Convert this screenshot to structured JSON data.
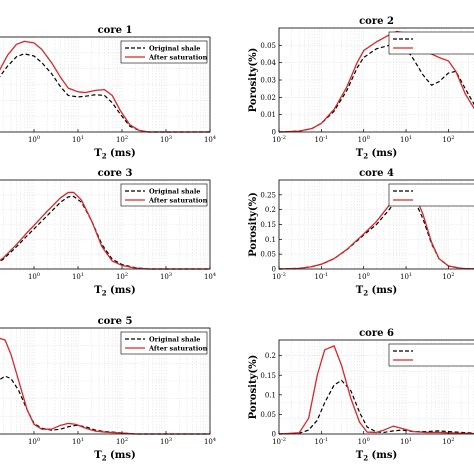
{
  "chart_data": [
    {
      "type": "line",
      "title": "core 1",
      "xlabel": "T 2 (ms)",
      "ylabel": "",
      "xscale": "log",
      "xlim": [
        0.1,
        10000
      ],
      "ylim": [
        0,
        0.13
      ],
      "xticks": [
        "10^-1",
        "10^0",
        "10^1",
        "10^2",
        "10^3",
        "10^4"
      ],
      "yticks": [],
      "grid": true,
      "legend_position": "top-right",
      "series": [
        {
          "name": "Original shale",
          "style": "dashed",
          "color": "#000000",
          "x": [
            0.1,
            0.15,
            0.25,
            0.4,
            0.6,
            1,
            1.5,
            2.5,
            4,
            6,
            10,
            15,
            25,
            40,
            60,
            90,
            150,
            250,
            400,
            1000,
            10000
          ],
          "y": [
            0.058,
            0.072,
            0.09,
            0.103,
            0.107,
            0.104,
            0.095,
            0.08,
            0.062,
            0.05,
            0.048,
            0.049,
            0.051,
            0.05,
            0.04,
            0.025,
            0.008,
            0.002,
            0.0,
            0.0,
            0.0
          ]
        },
        {
          "name": "After saturation",
          "style": "solid",
          "color": "#d62728",
          "x": [
            0.1,
            0.15,
            0.25,
            0.4,
            0.6,
            1,
            1.5,
            2.5,
            4,
            6,
            10,
            15,
            25,
            40,
            60,
            90,
            150,
            250,
            400,
            1000,
            10000
          ],
          "y": [
            0.06,
            0.08,
            0.105,
            0.12,
            0.124,
            0.122,
            0.113,
            0.095,
            0.075,
            0.06,
            0.055,
            0.054,
            0.057,
            0.058,
            0.05,
            0.03,
            0.01,
            0.002,
            0.0,
            0.0,
            0.0
          ]
        }
      ]
    },
    {
      "type": "line",
      "title": "core 2",
      "xlabel": "T 2 (ms)",
      "ylabel": "Porosity(%)",
      "xscale": "log",
      "xlim": [
        0.01,
        500
      ],
      "ylim": [
        0,
        0.06
      ],
      "xticks": [
        "10^-2",
        "10^-1",
        "10^0",
        "10^1",
        "10^2"
      ],
      "yticks": [
        "0",
        "0.01",
        "0.02",
        "0.03",
        "0.04",
        "0.05"
      ],
      "grid": true,
      "legend_position": "top-right",
      "series": [
        {
          "name": "",
          "style": "dashed",
          "color": "#000000",
          "x": [
            0.01,
            0.03,
            0.06,
            0.1,
            0.2,
            0.4,
            0.7,
            1,
            2,
            4,
            6,
            10,
            15,
            25,
            40,
            60,
            100,
            150,
            250,
            500
          ],
          "y": [
            0.0,
            0.0005,
            0.002,
            0.005,
            0.012,
            0.024,
            0.037,
            0.043,
            0.048,
            0.05,
            0.052,
            0.048,
            0.042,
            0.033,
            0.027,
            0.029,
            0.034,
            0.035,
            0.025,
            0.012
          ]
        },
        {
          "name": "",
          "style": "solid",
          "color": "#d62728",
          "x": [
            0.01,
            0.03,
            0.06,
            0.1,
            0.2,
            0.4,
            0.7,
            1,
            2,
            4,
            6,
            10,
            15,
            25,
            40,
            60,
            100,
            150,
            250,
            500
          ],
          "y": [
            0.0,
            0.0005,
            0.002,
            0.005,
            0.013,
            0.026,
            0.04,
            0.047,
            0.052,
            0.056,
            0.058,
            0.057,
            0.053,
            0.047,
            0.045,
            0.043,
            0.041,
            0.035,
            0.022,
            0.01
          ]
        }
      ]
    },
    {
      "type": "line",
      "title": "core 3",
      "xlabel": "T 2 (ms)",
      "ylabel": "",
      "xscale": "log",
      "xlim": [
        0.1,
        10000
      ],
      "ylim": [
        0,
        0.2
      ],
      "xticks": [
        "10^-1",
        "10^0",
        "10^1",
        "10^2",
        "10^3",
        "10^4"
      ],
      "yticks": [],
      "grid": true,
      "legend_position": "top-right",
      "series": [
        {
          "name": "Original shale",
          "style": "dashed",
          "color": "#000000",
          "x": [
            0.1,
            0.2,
            0.4,
            0.7,
            1,
            2,
            4,
            6,
            8,
            12,
            20,
            35,
            60,
            100,
            200,
            400,
            1000,
            10000
          ],
          "y": [
            0.003,
            0.022,
            0.05,
            0.075,
            0.09,
            0.12,
            0.15,
            0.162,
            0.163,
            0.15,
            0.11,
            0.055,
            0.022,
            0.01,
            0.003,
            0.0,
            0.0,
            0.0
          ]
        },
        {
          "name": "After saturation",
          "style": "solid",
          "color": "#d62728",
          "x": [
            0.1,
            0.2,
            0.4,
            0.7,
            1,
            2,
            4,
            6,
            8,
            12,
            20,
            35,
            60,
            100,
            200,
            400,
            1000,
            10000
          ],
          "y": [
            0.003,
            0.025,
            0.055,
            0.082,
            0.098,
            0.13,
            0.16,
            0.172,
            0.172,
            0.155,
            0.11,
            0.05,
            0.018,
            0.008,
            0.002,
            0.0,
            0.0,
            0.0
          ]
        }
      ]
    },
    {
      "type": "line",
      "title": "core 4",
      "xlabel": "T 2 (ms)",
      "ylabel": "Porosity(%)",
      "xscale": "log",
      "xlim": [
        0.01,
        500
      ],
      "ylim": [
        0,
        0.3
      ],
      "xticks": [
        "10^-2",
        "10^-1",
        "10^0",
        "10^1",
        "10^2"
      ],
      "yticks": [
        "0",
        "0.05",
        "0.1",
        "0.15",
        "0.2",
        "0.25"
      ],
      "grid": true,
      "legend_position": "top-right",
      "series": [
        {
          "name": "",
          "style": "dashed",
          "color": "#000000",
          "x": [
            0.01,
            0.03,
            0.06,
            0.1,
            0.2,
            0.4,
            0.7,
            1,
            2,
            4,
            6,
            10,
            15,
            25,
            40,
            60,
            100,
            200,
            500
          ],
          "y": [
            0.0,
            0.002,
            0.008,
            0.016,
            0.035,
            0.065,
            0.095,
            0.115,
            0.15,
            0.2,
            0.235,
            0.258,
            0.24,
            0.17,
            0.085,
            0.035,
            0.01,
            0.002,
            0.0
          ]
        },
        {
          "name": "",
          "style": "solid",
          "color": "#d62728",
          "x": [
            0.01,
            0.03,
            0.06,
            0.1,
            0.2,
            0.4,
            0.7,
            1,
            2,
            4,
            6,
            10,
            15,
            25,
            40,
            60,
            100,
            200,
            500
          ],
          "y": [
            0.0,
            0.002,
            0.008,
            0.016,
            0.035,
            0.066,
            0.098,
            0.118,
            0.16,
            0.215,
            0.255,
            0.28,
            0.262,
            0.185,
            0.09,
            0.035,
            0.01,
            0.002,
            0.0
          ]
        }
      ]
    },
    {
      "type": "line",
      "title": "core 5",
      "xlabel": "T 2 (ms)",
      "ylabel": "",
      "xscale": "log",
      "xlim": [
        0.1,
        10000
      ],
      "ylim": [
        0,
        0.22
      ],
      "xticks": [
        "10^-1",
        "10^0",
        "10^1",
        "10^2",
        "10^3",
        "10^4"
      ],
      "yticks": [],
      "grid": true,
      "legend_position": "top-right",
      "series": [
        {
          "name": "Original shale",
          "style": "dashed",
          "color": "#000000",
          "x": [
            0.1,
            0.15,
            0.22,
            0.3,
            0.45,
            0.7,
            1,
            1.5,
            2.5,
            4,
            6,
            9,
            15,
            25,
            40,
            60,
            100,
            200,
            1000,
            10000
          ],
          "y": [
            0.08,
            0.11,
            0.12,
            0.115,
            0.09,
            0.05,
            0.022,
            0.012,
            0.008,
            0.01,
            0.015,
            0.018,
            0.015,
            0.008,
            0.005,
            0.004,
            0.002,
            0.0,
            0.0,
            0.0
          ]
        },
        {
          "name": "After saturation",
          "style": "solid",
          "color": "#d62728",
          "x": [
            0.1,
            0.15,
            0.22,
            0.3,
            0.45,
            0.7,
            1,
            1.5,
            2.5,
            4,
            6,
            9,
            15,
            25,
            40,
            60,
            100,
            200,
            1000,
            10000
          ],
          "y": [
            0.18,
            0.2,
            0.195,
            0.165,
            0.11,
            0.05,
            0.02,
            0.01,
            0.01,
            0.018,
            0.022,
            0.02,
            0.012,
            0.006,
            0.004,
            0.003,
            0.002,
            0.0,
            0.0,
            0.0
          ]
        }
      ]
    },
    {
      "type": "line",
      "title": "core 6",
      "xlabel": "T 2 (ms)",
      "ylabel": "Porosity(%)",
      "xscale": "log",
      "xlim": [
        0.01,
        500
      ],
      "ylim": [
        0,
        0.24
      ],
      "xticks": [
        "10^-2",
        "10^-1",
        "10^0",
        "10^1",
        "10^2"
      ],
      "yticks": [
        "0",
        "0.05",
        "0.1",
        "0.15",
        "0.2"
      ],
      "grid": true,
      "legend_position": "top-right",
      "series": [
        {
          "name": "",
          "style": "dashed",
          "color": "#000000",
          "x": [
            0.01,
            0.03,
            0.05,
            0.08,
            0.12,
            0.2,
            0.3,
            0.5,
            0.8,
            1.2,
            2,
            3,
            5,
            8,
            15,
            30,
            60,
            100,
            200,
            500
          ],
          "y": [
            0.0,
            0.002,
            0.01,
            0.035,
            0.08,
            0.125,
            0.137,
            0.11,
            0.055,
            0.018,
            0.005,
            0.004,
            0.008,
            0.01,
            0.006,
            0.006,
            0.008,
            0.006,
            0.004,
            0.002
          ]
        },
        {
          "name": "",
          "style": "solid",
          "color": "#d62728",
          "x": [
            0.01,
            0.03,
            0.05,
            0.08,
            0.12,
            0.2,
            0.3,
            0.5,
            0.8,
            1.2,
            2,
            3,
            5,
            8,
            15,
            30,
            60,
            100,
            200,
            500
          ],
          "y": [
            0.0,
            0.003,
            0.04,
            0.15,
            0.215,
            0.225,
            0.175,
            0.09,
            0.03,
            0.005,
            0.004,
            0.01,
            0.02,
            0.014,
            0.006,
            0.004,
            0.004,
            0.003,
            0.002,
            0.001
          ]
        }
      ]
    }
  ],
  "legend": {
    "original_label": "Original shale",
    "saturation_label": "After saturation"
  }
}
